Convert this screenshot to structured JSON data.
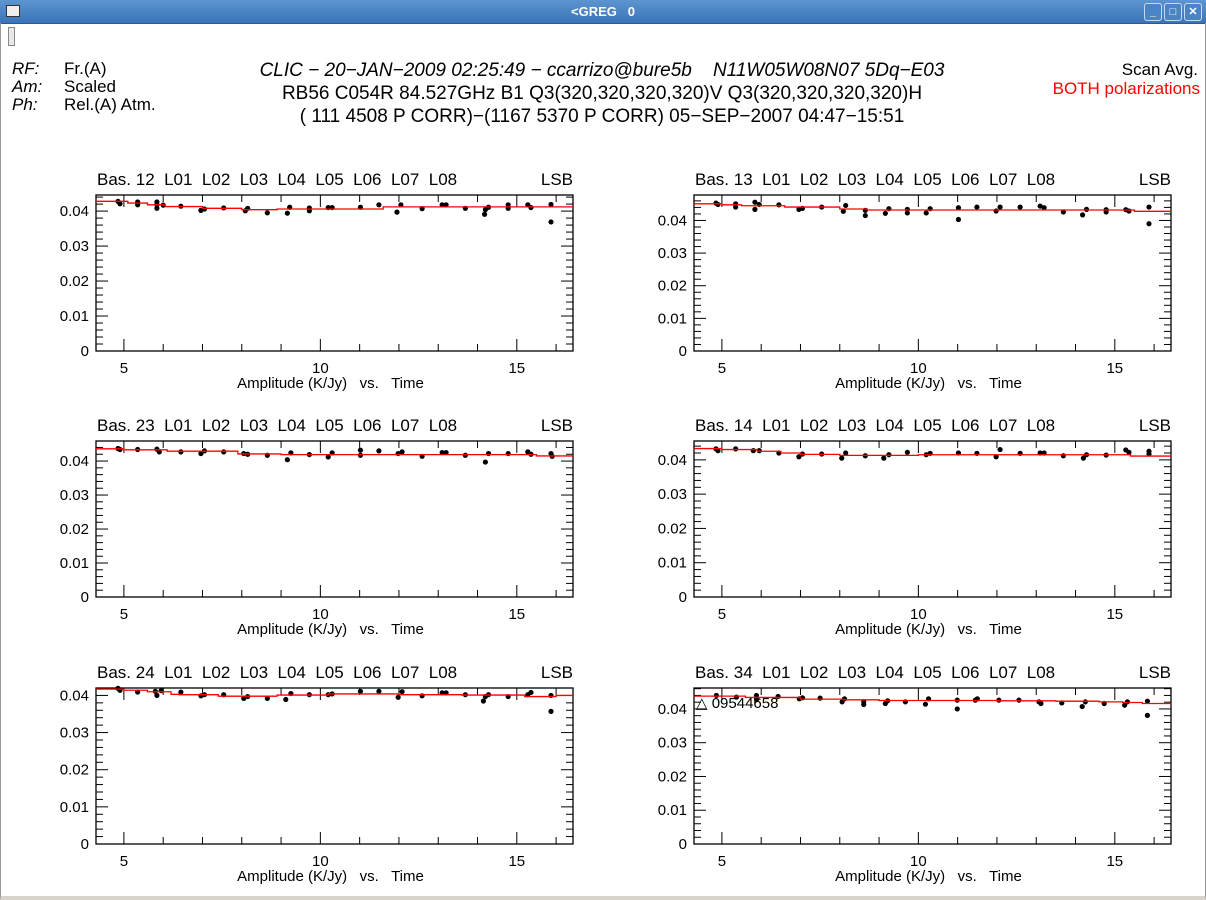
{
  "window": {
    "title": "<GREG   0",
    "buttons": [
      "minimize",
      "maximize",
      "close"
    ]
  },
  "header": {
    "left": [
      {
        "key": "RF:",
        "value": "Fr.(A)"
      },
      {
        "key": "Am:",
        "value": "Scaled"
      },
      {
        "key": "Ph:",
        "value": "Rel.(A) Atm."
      }
    ],
    "line1": "CLIC − 20−JAN−2009 02:25:49 − ccarrizo@bure5b    N11W05W08N07 5Dq−E03",
    "line2": "RB56 C054R 84.527GHz B1 Q3(320,320,320,320)V Q3(320,320,320,320)H",
    "line3": "( 111 4508 P CORR)−(1167 5370 P CORR) 05−SEP−2007 04:47−15:51",
    "right1": "Scan Avg.",
    "right2": "BOTH polarizations",
    "right2_color": "#ff0000"
  },
  "colors": {
    "points": "#000000",
    "fit": "#ff0000",
    "axes": "#000000"
  },
  "chart_data": [
    {
      "type": "scatter",
      "title": "Bas. 12  L01  L02  L03  L04  L05  L06  L07  L08",
      "sideband": "LSB",
      "xlabel": "Amplitude (K/Jy)   vs.   Time",
      "xlim": [
        4.29,
        16.43
      ],
      "ylim": [
        0,
        0.0446
      ],
      "xticks": [
        5,
        10,
        15
      ],
      "yticks": [
        0,
        0.01,
        0.02,
        0.03,
        0.04
      ],
      "points": [
        [
          4.85,
          0.0428
        ],
        [
          4.9,
          0.0421
        ],
        [
          5.35,
          0.0426
        ],
        [
          5.35,
          0.0418
        ],
        [
          5.84,
          0.0426
        ],
        [
          5.84,
          0.0418
        ],
        [
          5.84,
          0.0408
        ],
        [
          6.0,
          0.0417
        ],
        [
          6.45,
          0.0414
        ],
        [
          6.96,
          0.0402
        ],
        [
          7.05,
          0.0406
        ],
        [
          7.54,
          0.0409
        ],
        [
          8.09,
          0.0401
        ],
        [
          8.15,
          0.0408
        ],
        [
          8.65,
          0.0395
        ],
        [
          9.16,
          0.0394
        ],
        [
          9.22,
          0.0411
        ],
        [
          9.72,
          0.0409
        ],
        [
          9.72,
          0.0401
        ],
        [
          10.2,
          0.041
        ],
        [
          10.3,
          0.041
        ],
        [
          11.02,
          0.0411
        ],
        [
          11.49,
          0.0418
        ],
        [
          11.95,
          0.0397
        ],
        [
          12.05,
          0.0418
        ],
        [
          12.59,
          0.0407
        ],
        [
          13.1,
          0.0418
        ],
        [
          13.2,
          0.0418
        ],
        [
          13.69,
          0.0408
        ],
        [
          14.18,
          0.0391
        ],
        [
          14.2,
          0.0404
        ],
        [
          14.28,
          0.0411
        ],
        [
          14.78,
          0.0418
        ],
        [
          14.78,
          0.0408
        ],
        [
          15.28,
          0.0418
        ],
        [
          15.36,
          0.041
        ],
        [
          15.87,
          0.0419
        ],
        [
          15.87,
          0.0369
        ]
      ],
      "fit": [
        [
          4.29,
          0.0428
        ],
        [
          5.1,
          0.0423
        ],
        [
          5.6,
          0.0418
        ],
        [
          6.05,
          0.0413
        ],
        [
          7.0,
          0.0408
        ],
        [
          8.0,
          0.0404
        ],
        [
          8.9,
          0.0406
        ],
        [
          11.6,
          0.0412
        ],
        [
          16.43,
          0.0412
        ]
      ]
    },
    {
      "type": "scatter",
      "title": "Bas. 13  L01  L02  L03  L04  L05  L06  L07  L08",
      "sideband": "LSB",
      "xlabel": "Amplitude (K/Jy)   vs.   Time",
      "xlim": [
        4.29,
        16.43
      ],
      "ylim": [
        0,
        0.0478
      ],
      "xticks": [
        5,
        10,
        15
      ],
      "yticks": [
        0,
        0.01,
        0.02,
        0.03,
        0.04
      ],
      "points": [
        [
          4.85,
          0.0453
        ],
        [
          4.9,
          0.0449
        ],
        [
          5.35,
          0.0451
        ],
        [
          5.35,
          0.0441
        ],
        [
          5.84,
          0.0456
        ],
        [
          5.84,
          0.0434
        ],
        [
          5.95,
          0.0449
        ],
        [
          6.45,
          0.0448
        ],
        [
          6.96,
          0.0434
        ],
        [
          7.05,
          0.0437
        ],
        [
          7.54,
          0.0441
        ],
        [
          8.09,
          0.0428
        ],
        [
          8.15,
          0.0446
        ],
        [
          8.65,
          0.0431
        ],
        [
          8.65,
          0.0415
        ],
        [
          9.16,
          0.0422
        ],
        [
          9.25,
          0.0436
        ],
        [
          9.72,
          0.0434
        ],
        [
          9.72,
          0.0423
        ],
        [
          10.2,
          0.0423
        ],
        [
          10.3,
          0.0436
        ],
        [
          11.02,
          0.0439
        ],
        [
          11.02,
          0.0403
        ],
        [
          11.49,
          0.0441
        ],
        [
          11.98,
          0.0429
        ],
        [
          12.08,
          0.0441
        ],
        [
          12.59,
          0.0441
        ],
        [
          13.1,
          0.0444
        ],
        [
          13.2,
          0.0439
        ],
        [
          13.69,
          0.0426
        ],
        [
          14.18,
          0.0417
        ],
        [
          14.28,
          0.0434
        ],
        [
          14.78,
          0.0433
        ],
        [
          14.78,
          0.0426
        ],
        [
          15.28,
          0.0433
        ],
        [
          15.36,
          0.0429
        ],
        [
          15.87,
          0.0441
        ],
        [
          15.87,
          0.039
        ]
      ],
      "fit": [
        [
          4.29,
          0.0451
        ],
        [
          5.0,
          0.0448
        ],
        [
          5.5,
          0.0445
        ],
        [
          6.6,
          0.0441
        ],
        [
          8.0,
          0.0435
        ],
        [
          8.7,
          0.0432
        ],
        [
          15.3,
          0.0432
        ],
        [
          15.5,
          0.0428
        ],
        [
          16.43,
          0.0428
        ]
      ]
    },
    {
      "type": "scatter",
      "title": "Bas. 23  L01  L02  L03  L04  L05  L06  L07  L08",
      "sideband": "LSB",
      "xlabel": "Amplitude (K/Jy)   vs.   Time",
      "xlim": [
        4.29,
        16.43
      ],
      "ylim": [
        0,
        0.0459
      ],
      "xticks": [
        5,
        10,
        15
      ],
      "yticks": [
        0,
        0.01,
        0.02,
        0.03,
        0.04
      ],
      "points": [
        [
          4.85,
          0.0437
        ],
        [
          4.9,
          0.0434
        ],
        [
          5.35,
          0.0434
        ],
        [
          5.84,
          0.0435
        ],
        [
          5.9,
          0.0427
        ],
        [
          6.45,
          0.0427
        ],
        [
          6.96,
          0.0422
        ],
        [
          7.05,
          0.043
        ],
        [
          7.54,
          0.0427
        ],
        [
          8.05,
          0.0422
        ],
        [
          8.15,
          0.042
        ],
        [
          8.65,
          0.0417
        ],
        [
          9.16,
          0.0404
        ],
        [
          9.25,
          0.0424
        ],
        [
          9.72,
          0.0419
        ],
        [
          10.2,
          0.0412
        ],
        [
          10.3,
          0.0424
        ],
        [
          11.02,
          0.0432
        ],
        [
          11.02,
          0.0417
        ],
        [
          11.49,
          0.043
        ],
        [
          11.98,
          0.0422
        ],
        [
          12.08,
          0.0427
        ],
        [
          12.59,
          0.0414
        ],
        [
          13.1,
          0.0425
        ],
        [
          13.2,
          0.0425
        ],
        [
          13.69,
          0.0417
        ],
        [
          14.2,
          0.0397
        ],
        [
          14.28,
          0.0422
        ],
        [
          14.78,
          0.0422
        ],
        [
          15.28,
          0.0427
        ],
        [
          15.36,
          0.042
        ],
        [
          15.87,
          0.0422
        ],
        [
          15.9,
          0.0414
        ]
      ],
      "fit": [
        [
          4.29,
          0.0436
        ],
        [
          5.0,
          0.0433
        ],
        [
          6.1,
          0.0429
        ],
        [
          7.9,
          0.0421
        ],
        [
          9.0,
          0.0419
        ],
        [
          14.8,
          0.0419
        ],
        [
          15.5,
          0.0415
        ],
        [
          16.43,
          0.0415
        ]
      ]
    },
    {
      "type": "scatter",
      "title": "Bas. 14  L01  L02  L03  L04  L05  L06  L07  L08",
      "sideband": "LSB",
      "xlabel": "Amplitude (K/Jy)   vs.   Time",
      "xlim": [
        4.29,
        16.43
      ],
      "ylim": [
        0,
        0.0455
      ],
      "xticks": [
        5,
        10,
        15
      ],
      "yticks": [
        0,
        0.01,
        0.02,
        0.03,
        0.04
      ],
      "points": [
        [
          4.85,
          0.0432
        ],
        [
          4.9,
          0.0427
        ],
        [
          5.35,
          0.0432
        ],
        [
          5.8,
          0.0427
        ],
        [
          5.95,
          0.0427
        ],
        [
          6.45,
          0.042
        ],
        [
          6.96,
          0.0409
        ],
        [
          7.05,
          0.0417
        ],
        [
          7.54,
          0.0417
        ],
        [
          8.05,
          0.0405
        ],
        [
          8.15,
          0.042
        ],
        [
          8.65,
          0.0412
        ],
        [
          9.12,
          0.0405
        ],
        [
          9.25,
          0.0415
        ],
        [
          9.72,
          0.0422
        ],
        [
          10.2,
          0.0415
        ],
        [
          10.3,
          0.0419
        ],
        [
          11.02,
          0.042
        ],
        [
          11.49,
          0.0419
        ],
        [
          11.98,
          0.0409
        ],
        [
          12.08,
          0.043
        ],
        [
          12.59,
          0.0419
        ],
        [
          13.1,
          0.042
        ],
        [
          13.2,
          0.042
        ],
        [
          13.69,
          0.0412
        ],
        [
          14.2,
          0.0405
        ],
        [
          14.28,
          0.0415
        ],
        [
          14.78,
          0.0414
        ],
        [
          15.28,
          0.0429
        ],
        [
          15.36,
          0.0422
        ],
        [
          15.87,
          0.0425
        ],
        [
          15.87,
          0.0417
        ]
      ],
      "fit": [
        [
          4.29,
          0.0433
        ],
        [
          5.0,
          0.043
        ],
        [
          5.9,
          0.0425
        ],
        [
          6.5,
          0.042
        ],
        [
          7.0,
          0.0416
        ],
        [
          8.0,
          0.0413
        ],
        [
          10.0,
          0.0415
        ],
        [
          15.2,
          0.0415
        ],
        [
          15.4,
          0.0411
        ],
        [
          16.43,
          0.0411
        ]
      ]
    },
    {
      "type": "scatter",
      "title": "Bas. 24  L01  L02  L03  L04  L05  L06  L07  L08",
      "sideband": "LSB",
      "xlabel": "Amplitude (K/Jy)   vs.   Time",
      "xlim": [
        4.29,
        16.43
      ],
      "ylim": [
        0,
        0.042
      ],
      "xticks": [
        5,
        10,
        15
      ],
      "yticks": [
        0,
        0.01,
        0.02,
        0.03,
        0.04
      ],
      "points": [
        [
          4.85,
          0.0419
        ],
        [
          4.9,
          0.0414
        ],
        [
          5.35,
          0.0409
        ],
        [
          5.8,
          0.0411
        ],
        [
          5.84,
          0.04
        ],
        [
          5.95,
          0.0413
        ],
        [
          6.45,
          0.0409
        ],
        [
          6.96,
          0.0399
        ],
        [
          7.05,
          0.0402
        ],
        [
          7.54,
          0.0402
        ],
        [
          8.05,
          0.0392
        ],
        [
          8.15,
          0.0397
        ],
        [
          8.65,
          0.0392
        ],
        [
          9.12,
          0.0389
        ],
        [
          9.25,
          0.0405
        ],
        [
          9.72,
          0.0402
        ],
        [
          10.2,
          0.0402
        ],
        [
          10.3,
          0.0404
        ],
        [
          11.02,
          0.0411
        ],
        [
          11.49,
          0.0411
        ],
        [
          11.98,
          0.0395
        ],
        [
          12.08,
          0.041
        ],
        [
          12.59,
          0.0399
        ],
        [
          13.1,
          0.0407
        ],
        [
          13.2,
          0.0407
        ],
        [
          13.69,
          0.0402
        ],
        [
          14.15,
          0.0385
        ],
        [
          14.2,
          0.0397
        ],
        [
          14.28,
          0.0402
        ],
        [
          14.78,
          0.0397
        ],
        [
          15.28,
          0.0402
        ],
        [
          15.36,
          0.0408
        ],
        [
          15.87,
          0.04
        ],
        [
          15.87,
          0.0357
        ]
      ],
      "fit": [
        [
          4.29,
          0.0417
        ],
        [
          5.0,
          0.0414
        ],
        [
          5.6,
          0.041
        ],
        [
          6.2,
          0.0403
        ],
        [
          6.4,
          0.0402
        ],
        [
          7.4,
          0.0398
        ],
        [
          8.9,
          0.0401
        ],
        [
          10.2,
          0.0404
        ],
        [
          12.0,
          0.0402
        ],
        [
          13.6,
          0.0401
        ],
        [
          15.2,
          0.0397
        ],
        [
          16.0,
          0.04
        ],
        [
          16.43,
          0.04
        ]
      ]
    },
    {
      "type": "scatter",
      "title": "Bas. 34  L01  L02  L03  L04  L05  L06  L07  L08",
      "sideband": "LSB",
      "xlabel": "Amplitude (K/Jy)   vs.   Time",
      "xlim": [
        4.29,
        16.43
      ],
      "ylim": [
        0,
        0.0462
      ],
      "xticks": [
        5,
        10,
        15
      ],
      "yticks": [
        0,
        0.01,
        0.02,
        0.03,
        0.04
      ],
      "annotation": "△ 09544658",
      "points": [
        [
          4.86,
          0.044
        ],
        [
          5.37,
          0.0435
        ],
        [
          5.88,
          0.044
        ],
        [
          5.88,
          0.0428
        ],
        [
          6.43,
          0.0437
        ],
        [
          6.97,
          0.043
        ],
        [
          7.05,
          0.0433
        ],
        [
          7.5,
          0.0432
        ],
        [
          8.06,
          0.0421
        ],
        [
          8.12,
          0.043
        ],
        [
          8.61,
          0.0421
        ],
        [
          8.61,
          0.0413
        ],
        [
          9.16,
          0.0416
        ],
        [
          9.22,
          0.0424
        ],
        [
          9.67,
          0.0421
        ],
        [
          10.18,
          0.0414
        ],
        [
          10.26,
          0.043
        ],
        [
          10.99,
          0.0426
        ],
        [
          10.99,
          0.04
        ],
        [
          11.45,
          0.0426
        ],
        [
          11.5,
          0.043
        ],
        [
          12.05,
          0.0426
        ],
        [
          12.56,
          0.0426
        ],
        [
          13.07,
          0.0421
        ],
        [
          13.12,
          0.0416
        ],
        [
          13.65,
          0.0418
        ],
        [
          14.17,
          0.0407
        ],
        [
          14.25,
          0.0421
        ],
        [
          14.73,
          0.0416
        ],
        [
          15.25,
          0.0411
        ],
        [
          15.32,
          0.0421
        ],
        [
          15.83,
          0.0423
        ],
        [
          15.83,
          0.0381
        ]
      ],
      "fit": [
        [
          4.29,
          0.0438
        ],
        [
          5.6,
          0.0434
        ],
        [
          7.0,
          0.0429
        ],
        [
          8.1,
          0.0427
        ],
        [
          9.0,
          0.0425
        ],
        [
          11.2,
          0.0425
        ],
        [
          12.0,
          0.0424
        ],
        [
          13.5,
          0.0423
        ],
        [
          14.6,
          0.0421
        ],
        [
          15.2,
          0.0419
        ],
        [
          15.7,
          0.0416
        ],
        [
          16.43,
          0.0416
        ]
      ]
    }
  ]
}
